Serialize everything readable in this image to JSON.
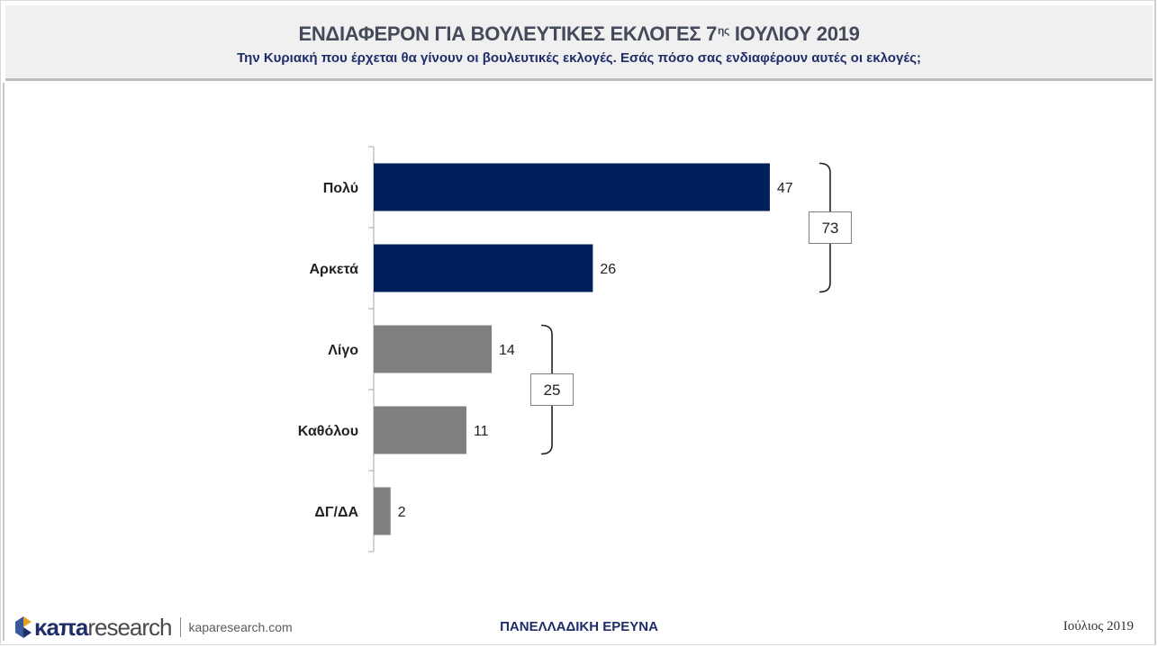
{
  "header": {
    "title_main": "ΕΝΔΙΑΦΕΡΟΝ ΓΙΑ ΒΟΥΛΕΥΤΙΚΕΣ ΕΚΛΟΓΕΣ 7",
    "title_sup": "ης",
    "title_end": " ΙΟΥΛΙΟΥ 2019",
    "subtitle": "Την Κυριακή που έρχεται θα γίνουν οι βουλευτικές εκλογές. Εσάς πόσο σας ενδιαφέρουν αυτές οι εκλογές;"
  },
  "chart_data": {
    "type": "bar",
    "orientation": "horizontal",
    "categories": [
      "Πολύ",
      "Αρκετά",
      "Λίγο",
      "Καθόλου",
      "ΔΓ/ΔΑ"
    ],
    "values": [
      47,
      26,
      14,
      11,
      2
    ],
    "colors": [
      "#001f5b",
      "#001f5b",
      "#7f7f7f",
      "#7f7f7f",
      "#7f7f7f"
    ],
    "groups": [
      {
        "categories": [
          "Πολύ",
          "Αρκετά"
        ],
        "total": 73
      },
      {
        "categories": [
          "Λίγο",
          "Καθόλου"
        ],
        "total": 25
      }
    ],
    "xlim": [
      0,
      100
    ],
    "grid": false
  },
  "footer": {
    "logo_brand": "κaπa",
    "logo_research": "research",
    "logo_url": "kaparesearch.com",
    "center": "ΠΑΝΕΛΛΑΔΙΚΗ ΕΡΕΥΝΑ",
    "date": "Ιούλιος 2019"
  }
}
